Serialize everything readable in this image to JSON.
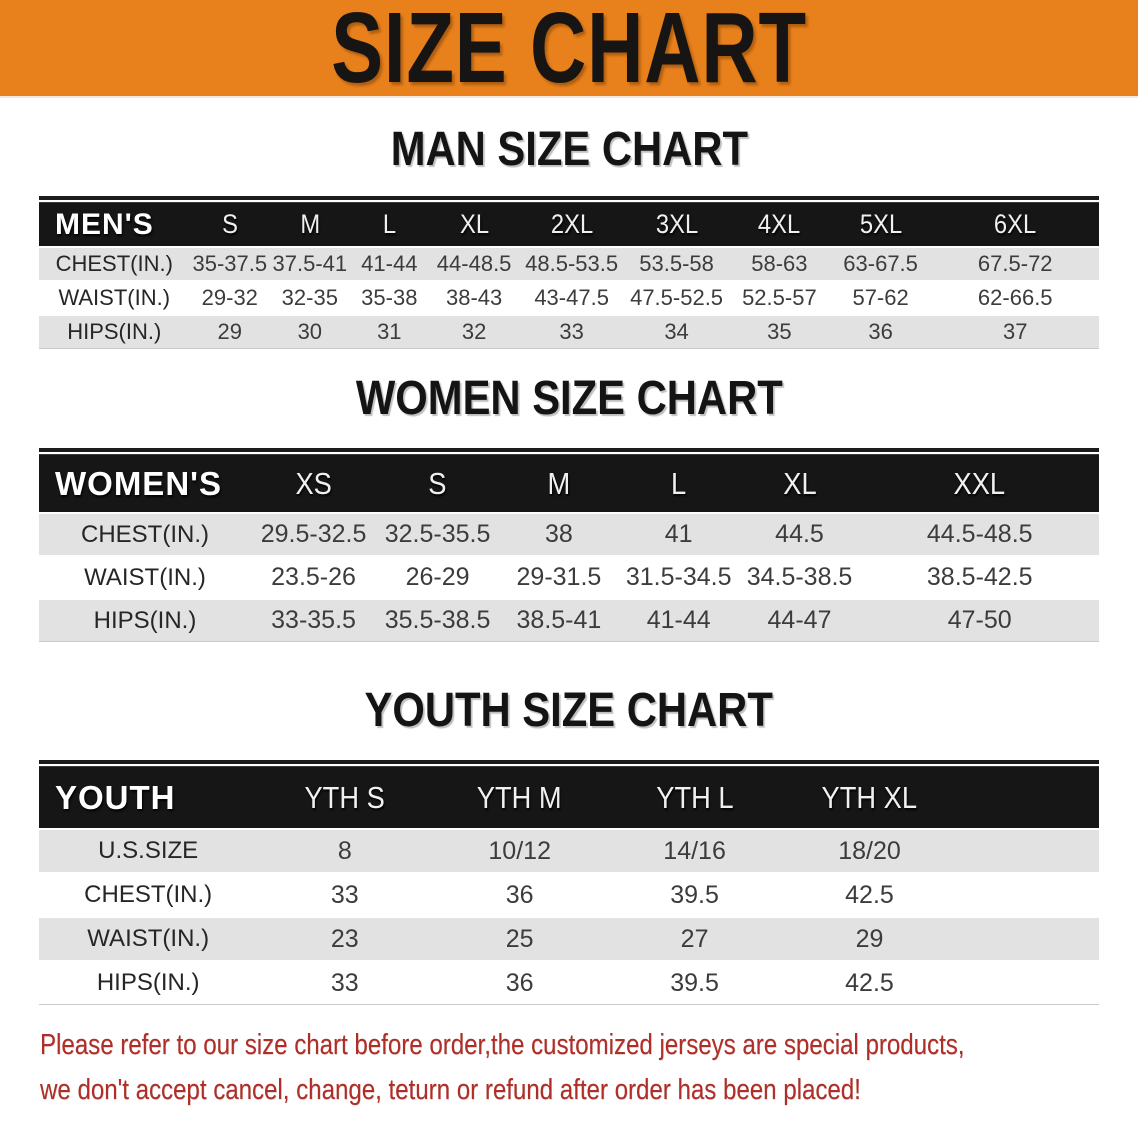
{
  "banner": {
    "title": "SIZE CHART"
  },
  "theme": {
    "accentOrange": "#E8811C",
    "bandBlack": "#161616",
    "rowGray": "#E2E2E2",
    "noteRed": "#B02E28",
    "headingBlack": "#141414",
    "cellText": "#3C3C3C"
  },
  "chart_data": [
    {
      "type": "table",
      "title": "MAN SIZE CHART",
      "corner_label": "MEN'S",
      "columns": [
        "S",
        "M",
        "L",
        "XL",
        "2XL",
        "3XL",
        "4XL",
        "5XL",
        "6XL"
      ],
      "rows": [
        {
          "label": "CHEST(IN.)",
          "values": [
            "35-37.5",
            "37.5-41",
            "41-44",
            "44-48.5",
            "48.5-53.5",
            "53.5-58",
            "58-63",
            "63-67.5",
            "67.5-72"
          ]
        },
        {
          "label": "WAIST(IN.)",
          "values": [
            "29-32",
            "32-35",
            "35-38",
            "38-43",
            "43-47.5",
            "47.5-52.5",
            "52.5-57",
            "57-62",
            "62-66.5"
          ]
        },
        {
          "label": "HIPS(IN.)",
          "values": [
            "29",
            "30",
            "31",
            "32",
            "33",
            "34",
            "35",
            "36",
            "37"
          ]
        }
      ]
    },
    {
      "type": "table",
      "title": "WOMEN SIZE CHART",
      "corner_label": "WOMEN'S",
      "columns": [
        "XS",
        "S",
        "M",
        "L",
        "XL",
        "XXL"
      ],
      "rows": [
        {
          "label": "CHEST(IN.)",
          "values": [
            "29.5-32.5",
            "32.5-35.5",
            "38",
            "41",
            "44.5",
            "44.5-48.5"
          ]
        },
        {
          "label": "WAIST(IN.)",
          "values": [
            "23.5-26",
            "26-29",
            "29-31.5",
            "31.5-34.5",
            "34.5-38.5",
            "38.5-42.5"
          ]
        },
        {
          "label": "HIPS(IN.)",
          "values": [
            "33-35.5",
            "35.5-38.5",
            "38.5-41",
            "41-44",
            "44-47",
            "47-50"
          ]
        }
      ]
    },
    {
      "type": "table",
      "title": "YOUTH SIZE CHART",
      "corner_label": "YOUTH",
      "columns": [
        "YTH S",
        "YTH M",
        "YTH L",
        "YTH XL"
      ],
      "rows": [
        {
          "label": "U.S.SIZE",
          "values": [
            "8",
            "10/12",
            "14/16",
            "18/20"
          ]
        },
        {
          "label": "CHEST(IN.)",
          "values": [
            "33",
            "36",
            "39.5",
            "42.5"
          ]
        },
        {
          "label": "WAIST(IN.)",
          "values": [
            "23",
            "25",
            "27",
            "29"
          ]
        },
        {
          "label": "HIPS(IN.)",
          "values": [
            "33",
            "36",
            "39.5",
            "42.5"
          ]
        }
      ]
    }
  ],
  "footer": {
    "lines": [
      "Please refer to our size chart before order,the customized jerseys are special products,",
      "we don't accept cancel, change, teturn or refund after order has been placed!"
    ]
  }
}
